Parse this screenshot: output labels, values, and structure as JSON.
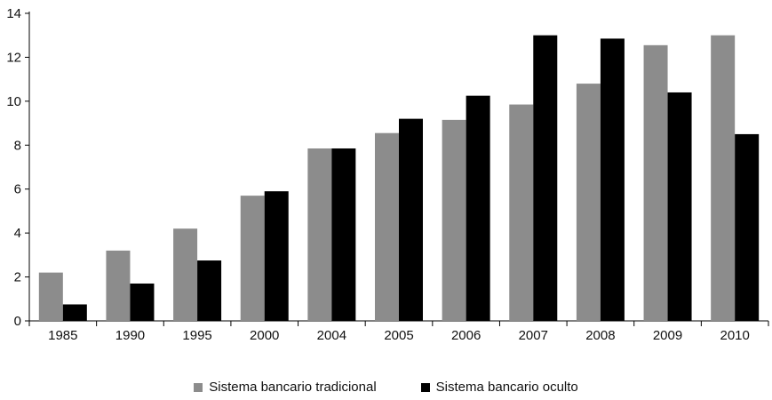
{
  "chart_data": {
    "type": "bar",
    "title": "",
    "xlabel": "",
    "ylabel": "",
    "categories": [
      "1985",
      "1990",
      "1995",
      "2000",
      "2004",
      "2005",
      "2006",
      "2007",
      "2008",
      "2009",
      "2010"
    ],
    "series": [
      {
        "name": "Sistema bancario tradicional",
        "color": "#8c8c8c",
        "values": [
          2.2,
          3.2,
          4.2,
          5.7,
          7.85,
          8.55,
          9.15,
          9.85,
          10.8,
          12.55,
          13.0
        ]
      },
      {
        "name": "Sistema bancario oculto",
        "color": "#000000",
        "values": [
          0.75,
          1.7,
          2.75,
          5.9,
          7.85,
          9.2,
          10.25,
          13.0,
          12.85,
          10.4,
          8.5
        ]
      }
    ],
    "ylim": [
      0,
      14
    ],
    "yticks": [
      0,
      2,
      4,
      6,
      8,
      10,
      12,
      14
    ],
    "grid": false,
    "legend_position": "bottom"
  }
}
